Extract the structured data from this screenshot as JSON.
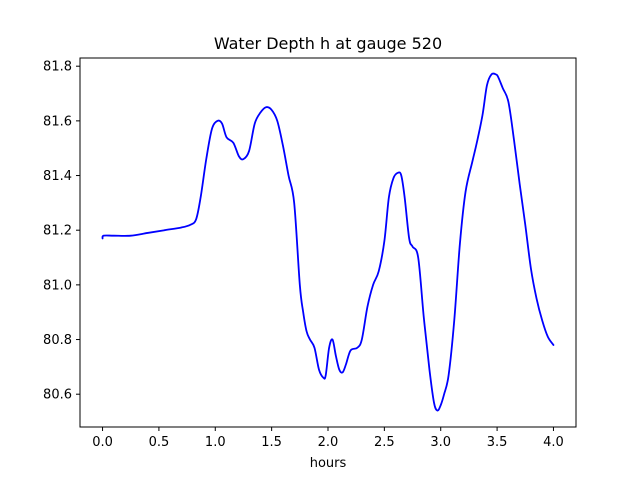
{
  "chart_data": {
    "type": "line",
    "title": "Water Depth h at gauge 520",
    "xlabel": "hours",
    "ylabel": "",
    "xlim": [
      -0.2,
      4.2
    ],
    "ylim": [
      80.48,
      81.83
    ],
    "xticks": [
      0.0,
      0.5,
      1.0,
      1.5,
      2.0,
      2.5,
      3.0,
      3.5,
      4.0
    ],
    "xtick_labels": [
      "0.0",
      "0.5",
      "1.0",
      "1.5",
      "2.0",
      "2.5",
      "3.0",
      "3.5",
      "4.0"
    ],
    "yticks": [
      80.6,
      80.8,
      81.0,
      81.2,
      81.4,
      81.6,
      81.8
    ],
    "ytick_labels": [
      "80.6",
      "80.8",
      "81.0",
      "81.2",
      "81.4",
      "81.6",
      "81.8"
    ],
    "grid": false,
    "legend": "none",
    "series": [
      {
        "color": "#0000ff",
        "x": [
          0.0,
          0.01,
          0.1,
          0.25,
          0.4,
          0.55,
          0.7,
          0.78,
          0.83,
          0.87,
          0.92,
          0.97,
          1.02,
          1.06,
          1.1,
          1.16,
          1.21,
          1.25,
          1.3,
          1.35,
          1.4,
          1.45,
          1.5,
          1.55,
          1.6,
          1.65,
          1.7,
          1.75,
          1.78,
          1.81,
          1.84,
          1.88,
          1.92,
          1.96,
          1.98,
          2.01,
          2.04,
          2.07,
          2.1,
          2.13,
          2.16,
          2.2,
          2.26,
          2.3,
          2.35,
          2.4,
          2.45,
          2.5,
          2.54,
          2.58,
          2.62,
          2.65,
          2.68,
          2.72,
          2.75,
          2.8,
          2.85,
          2.9,
          2.94,
          2.97,
          3.0,
          3.03,
          3.07,
          3.12,
          3.17,
          3.22,
          3.28,
          3.32,
          3.37,
          3.41,
          3.45,
          3.49,
          3.51,
          3.55,
          3.6,
          3.65,
          3.7,
          3.75,
          3.8,
          3.85,
          3.9,
          3.95,
          4.0
        ],
        "values": [
          81.17,
          81.18,
          81.18,
          81.18,
          81.19,
          81.2,
          81.21,
          81.22,
          81.24,
          81.32,
          81.46,
          81.57,
          81.6,
          81.59,
          81.54,
          81.52,
          81.47,
          81.46,
          81.49,
          81.59,
          81.63,
          81.65,
          81.64,
          81.6,
          81.51,
          81.4,
          81.3,
          81.0,
          80.9,
          80.83,
          80.8,
          80.77,
          80.69,
          80.66,
          80.67,
          80.77,
          80.8,
          80.74,
          80.69,
          80.68,
          80.71,
          80.76,
          80.77,
          80.8,
          80.92,
          81.0,
          81.05,
          81.16,
          81.32,
          81.39,
          81.41,
          81.4,
          81.32,
          81.17,
          81.14,
          81.1,
          80.88,
          80.69,
          80.57,
          80.54,
          80.56,
          80.6,
          80.67,
          80.87,
          81.15,
          81.34,
          81.45,
          81.52,
          81.62,
          81.73,
          81.77,
          81.77,
          81.76,
          81.72,
          81.67,
          81.53,
          81.37,
          81.22,
          81.06,
          80.95,
          80.87,
          80.81,
          80.78
        ]
      }
    ]
  }
}
